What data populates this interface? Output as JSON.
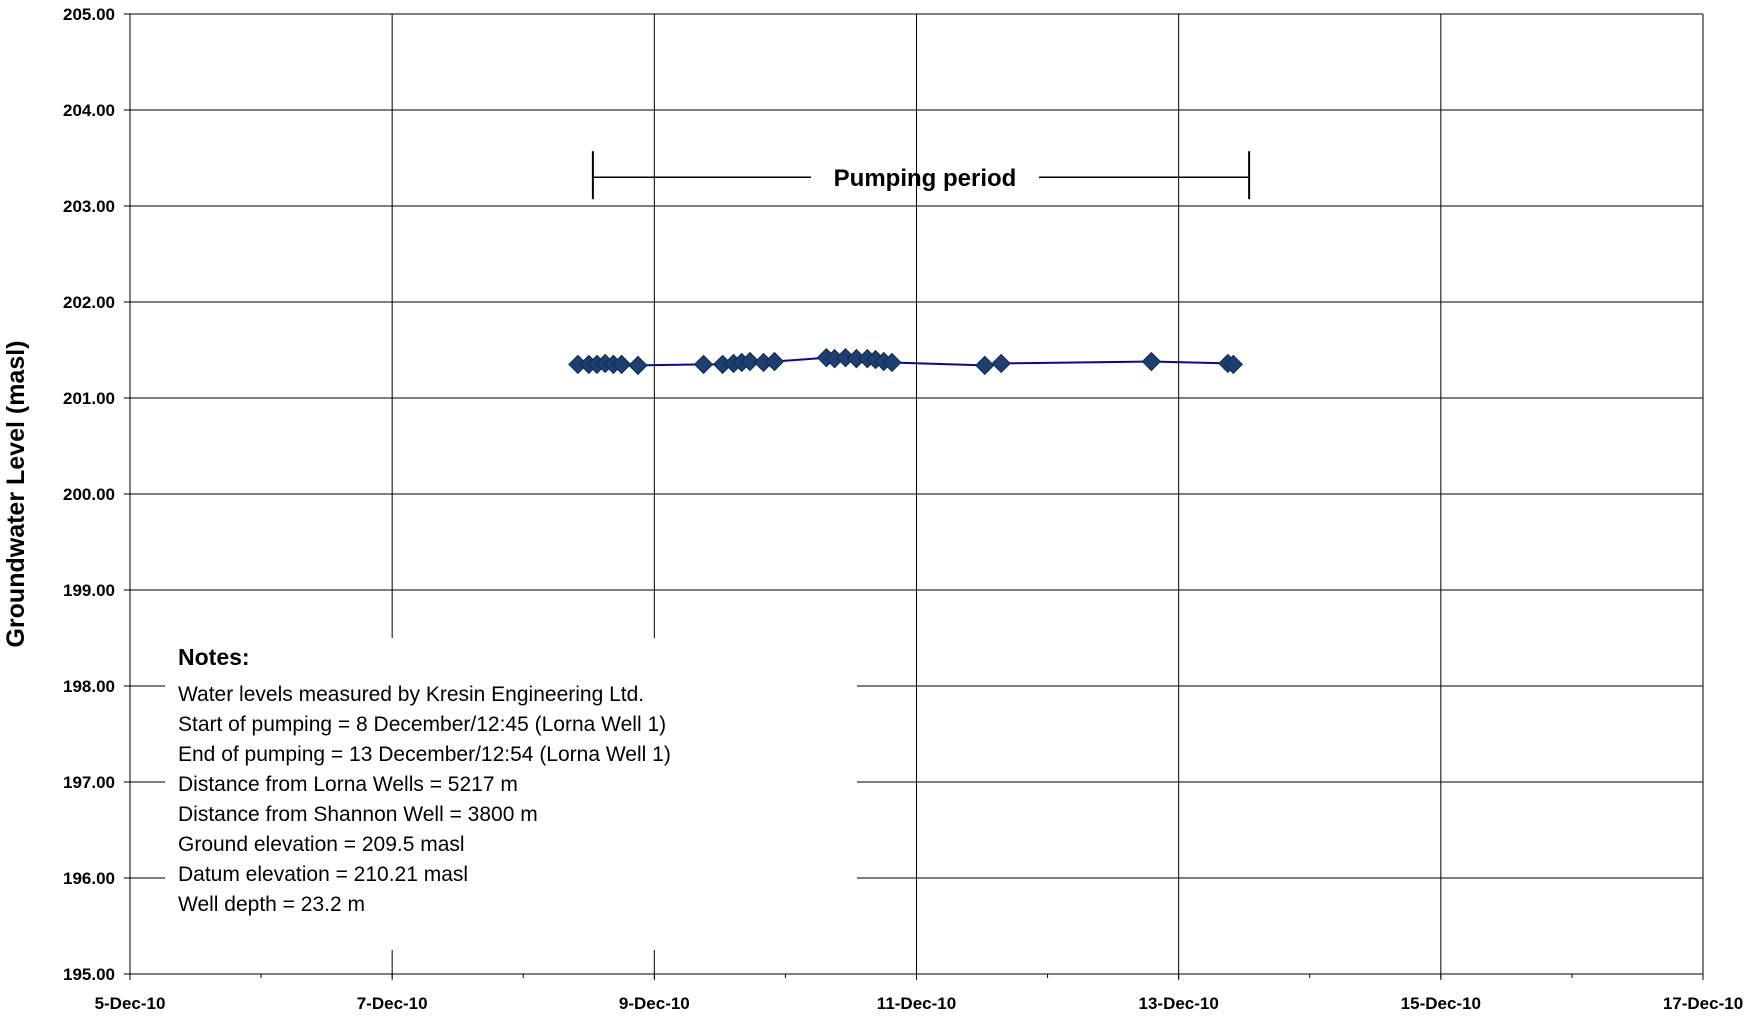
{
  "chart_data": {
    "type": "line",
    "title": "",
    "xlabel": "",
    "ylabel": "Groundwater Level (masl)",
    "x_tick_labels": [
      "5-Dec-10",
      "7-Dec-10",
      "9-Dec-10",
      "11-Dec-10",
      "13-Dec-10",
      "15-Dec-10",
      "17-Dec-10"
    ],
    "x_ticks": [
      "2010-12-05",
      "2010-12-07",
      "2010-12-09",
      "2010-12-11",
      "2010-12-13",
      "2010-12-15",
      "2010-12-17"
    ],
    "xlim": [
      "2010-12-05",
      "2010-12-17"
    ],
    "y_tick_labels": [
      "205.00",
      "204.00",
      "203.00",
      "202.00",
      "201.00",
      "200.00",
      "199.00",
      "198.00",
      "197.00",
      "196.00",
      "195.00"
    ],
    "ylim": [
      195,
      205
    ],
    "grid": true,
    "series": [
      {
        "marker": "diamond",
        "color": "#1f3f6e",
        "line_color": "#0a0a8c",
        "x": [
          "2010-12-08 10:00",
          "2010-12-08 12:00",
          "2010-12-08 13:30",
          "2010-12-08 15:00",
          "2010-12-08 16:30",
          "2010-12-08 18:00",
          "2010-12-08 21:00",
          "2010-12-09 09:00",
          "2010-12-09 12:30",
          "2010-12-09 14:30",
          "2010-12-09 16:00",
          "2010-12-09 17:30",
          "2010-12-09 20:00",
          "2010-12-09 22:00",
          "2010-12-10 07:30",
          "2010-12-10 09:00",
          "2010-12-10 11:00",
          "2010-12-10 13:00",
          "2010-12-10 15:00",
          "2010-12-10 16:30",
          "2010-12-10 18:00",
          "2010-12-10 19:30",
          "2010-12-11 12:30",
          "2010-12-11 15:30",
          "2010-12-12 19:00",
          "2010-12-13 09:00",
          "2010-12-13 10:00"
        ],
        "y": [
          201.35,
          201.35,
          201.35,
          201.36,
          201.35,
          201.35,
          201.34,
          201.35,
          201.35,
          201.36,
          201.37,
          201.38,
          201.37,
          201.38,
          201.42,
          201.41,
          201.42,
          201.41,
          201.41,
          201.4,
          201.38,
          201.37,
          201.34,
          201.36,
          201.38,
          201.36,
          201.35
        ]
      }
    ],
    "annotations": {
      "pumping_label": "Pumping period",
      "pumping_start": "2010-12-08 12:45",
      "pumping_end": "2010-12-13 12:54",
      "pumping_level": 203.3
    },
    "notes": {
      "title": "Notes:",
      "lines": [
        "Water levels measured by Kresin Engineering Ltd.",
        "Start of pumping = 8 December/12:45 (Lorna Well 1)",
        "End of pumping = 13 December/12:54 (Lorna Well 1)",
        "Distance from Lorna Wells = 5217 m",
        "Distance from Shannon Well = 3800 m",
        "Ground elevation = 209.5 masl",
        "Datum elevation = 210.21 masl",
        "Well depth = 23.2 m"
      ]
    }
  }
}
